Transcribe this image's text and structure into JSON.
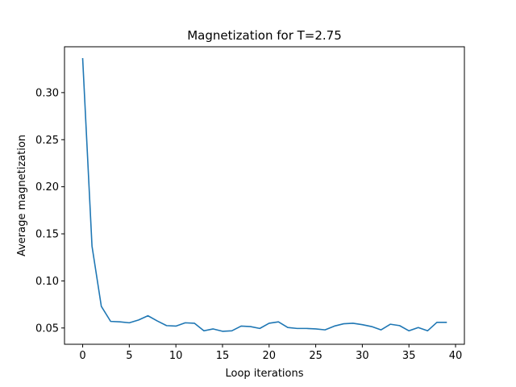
{
  "chart_data": {
    "type": "line",
    "title": "Magnetization for T=2.75",
    "xlabel": "Loop iterations",
    "ylabel": "Average magnetization",
    "xlim": [
      -1.95,
      40.95
    ],
    "ylim": [
      0.0327,
      0.3487
    ],
    "xticks": [
      0,
      5,
      10,
      15,
      20,
      25,
      30,
      35,
      40
    ],
    "xtick_labels": [
      "0",
      "5",
      "10",
      "15",
      "20",
      "25",
      "30",
      "35",
      "40"
    ],
    "yticks": [
      0.05,
      0.1,
      0.15,
      0.2,
      0.25,
      0.3
    ],
    "ytick_labels": [
      "0.05",
      "0.10",
      "0.15",
      "0.20",
      "0.25",
      "0.30"
    ],
    "grid": false,
    "legend": "none",
    "series": [
      {
        "color": "#1f77b4",
        "x": [
          0,
          1,
          2,
          3,
          4,
          5,
          6,
          7,
          8,
          9,
          10,
          11,
          12,
          13,
          14,
          15,
          16,
          17,
          18,
          19,
          20,
          21,
          22,
          23,
          24,
          25,
          26,
          27,
          28,
          29,
          30,
          31,
          32,
          33,
          34,
          35,
          36,
          37,
          38,
          39
        ],
        "y": [
          0.336,
          0.137,
          0.073,
          0.057,
          0.0565,
          0.0555,
          0.0585,
          0.063,
          0.0575,
          0.0525,
          0.052,
          0.0555,
          0.055,
          0.047,
          0.049,
          0.0465,
          0.047,
          0.052,
          0.0515,
          0.0495,
          0.055,
          0.0565,
          0.0505,
          0.0495,
          0.0495,
          0.049,
          0.048,
          0.052,
          0.0545,
          0.055,
          0.0535,
          0.0515,
          0.048,
          0.054,
          0.0525,
          0.047,
          0.0505,
          0.047,
          0.056,
          0.056
        ]
      }
    ]
  }
}
